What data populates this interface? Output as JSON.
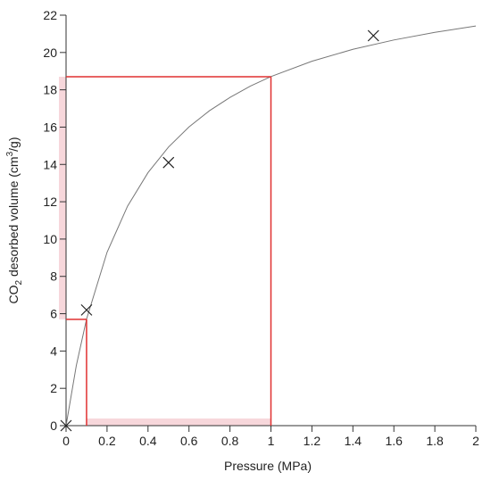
{
  "chart_data": {
    "type": "scatter",
    "xlabel": "Pressure (MPa)",
    "ylabel_parts": [
      "CO",
      "2",
      " desorbed volume (cm",
      "3",
      "/g)"
    ],
    "xlim": [
      0,
      2
    ],
    "ylim": [
      0,
      22
    ],
    "xticks": [
      0,
      0.2,
      0.4,
      0.6,
      0.8,
      1,
      1.2,
      1.4,
      1.6,
      1.8,
      2
    ],
    "yticks": [
      0,
      2,
      4,
      6,
      8,
      10,
      12,
      14,
      16,
      18,
      20,
      22
    ],
    "points": {
      "color": "#222",
      "x": [
        0,
        0.1,
        0.5,
        1.5
      ],
      "values": [
        0,
        6.2,
        14.1,
        20.9
      ]
    },
    "curve": {
      "color": "#777",
      "x": [
        0,
        0.05,
        0.1,
        0.2,
        0.3,
        0.4,
        0.5,
        0.6,
        0.7,
        0.8,
        0.9,
        1.0,
        1.2,
        1.4,
        1.6,
        1.8,
        2.0
      ],
      "values": [
        0,
        3.22,
        5.71,
        9.29,
        11.76,
        13.56,
        14.93,
        16.01,
        16.88,
        17.59,
        18.2,
        18.71,
        19.53,
        20.17,
        20.67,
        21.08,
        21.42
      ]
    },
    "guides": {
      "color": "#e03030",
      "x": [
        0.1,
        1
      ],
      "values": [
        5.7,
        18.7
      ]
    },
    "band_color": "#f4c6cc"
  }
}
